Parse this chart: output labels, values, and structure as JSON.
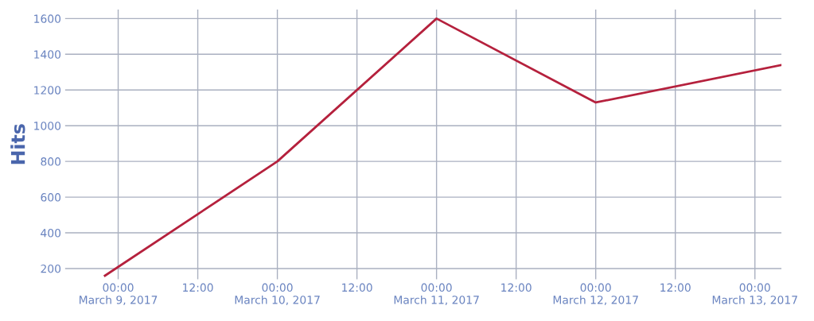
{
  "chart_data": {
    "type": "line",
    "ylabel": "Hits",
    "x": [
      "2017-03-08T22:00",
      "2017-03-10T00:00",
      "2017-03-11T00:00",
      "2017-03-12T00:00",
      "2017-03-13T04:00"
    ],
    "series": [
      {
        "color": "#b5213d",
        "values": [
          160,
          800,
          1600,
          1130,
          1340
        ]
      }
    ],
    "xlim": [
      "2017-03-08T16:00",
      "2017-03-13T04:00"
    ],
    "xticks": [
      {
        "value": "2017-03-09T00:00",
        "label": "00:00\nMarch 9, 2017"
      },
      {
        "value": "2017-03-09T12:00",
        "label": "12:00"
      },
      {
        "value": "2017-03-10T00:00",
        "label": "00:00\nMarch 10, 2017"
      },
      {
        "value": "2017-03-10T12:00",
        "label": "12:00"
      },
      {
        "value": "2017-03-11T00:00",
        "label": "00:00\nMarch 11, 2017"
      },
      {
        "value": "2017-03-11T12:00",
        "label": "12:00"
      },
      {
        "value": "2017-03-12T00:00",
        "label": "00:00\nMarch 12, 2017"
      },
      {
        "value": "2017-03-12T12:00",
        "label": "12:00"
      },
      {
        "value": "2017-03-13T00:00",
        "label": "00:00\nMarch 13, 2017"
      }
    ],
    "ylim": [
      140,
      1650
    ],
    "yticks": [
      200,
      400,
      600,
      800,
      1000,
      1200,
      1400,
      1600
    ],
    "grid": true,
    "marker": "none",
    "line_style": "solid"
  }
}
